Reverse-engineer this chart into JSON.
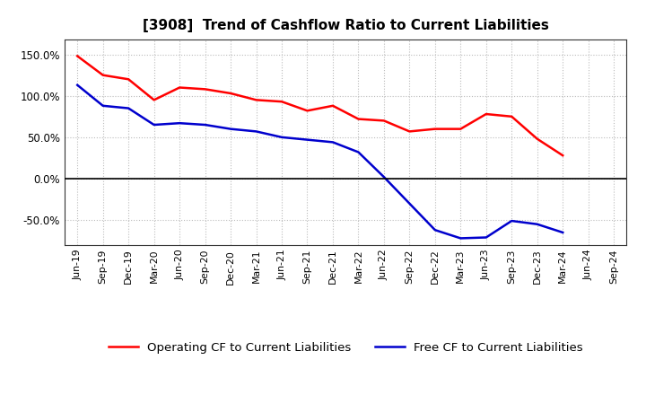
{
  "title": "[3908]  Trend of Cashflow Ratio to Current Liabilities",
  "x_labels": [
    "Jun-19",
    "Sep-19",
    "Dec-19",
    "Mar-20",
    "Jun-20",
    "Sep-20",
    "Dec-20",
    "Mar-21",
    "Jun-21",
    "Sep-21",
    "Dec-21",
    "Mar-22",
    "Jun-22",
    "Sep-22",
    "Dec-22",
    "Mar-23",
    "Jun-23",
    "Sep-23",
    "Dec-23",
    "Mar-24",
    "Jun-24",
    "Sep-24"
  ],
  "operating_cf": [
    148,
    125,
    120,
    95,
    110,
    108,
    103,
    95,
    93,
    82,
    88,
    72,
    70,
    57,
    60,
    60,
    78,
    75,
    48,
    28,
    null,
    null
  ],
  "free_cf": [
    113,
    88,
    85,
    65,
    67,
    65,
    60,
    57,
    50,
    47,
    44,
    32,
    2,
    -30,
    -62,
    -72,
    -71,
    -51,
    -55,
    -65,
    null,
    null
  ],
  "ylim": [
    -80,
    168
  ],
  "yticks": [
    -50,
    0,
    50,
    100,
    150
  ],
  "ytick_labels": [
    "-50.0%",
    "0.0%",
    "50.0%",
    "100.0%",
    "150.0%"
  ],
  "operating_color": "#ff0000",
  "free_color": "#0000cd",
  "background_color": "#ffffff",
  "grid_color": "#bbbbbb",
  "legend_op": "Operating CF to Current Liabilities",
  "legend_free": "Free CF to Current Liabilities"
}
